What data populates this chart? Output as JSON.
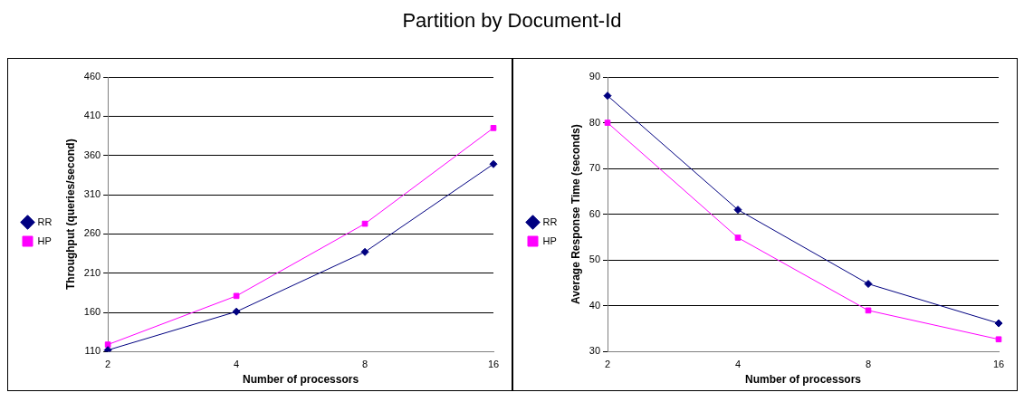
{
  "chart_data": [
    {
      "type": "line",
      "title": "Partition by Document-Id",
      "xlabel": "Number of processors",
      "ylabel": "Throughput (queries/second)",
      "categories": [
        "2",
        "4",
        "8",
        "16"
      ],
      "series": [
        {
          "name": "RR",
          "color": "#000080",
          "marker": "diamond",
          "values": [
            112,
            161,
            237,
            349
          ]
        },
        {
          "name": "HP",
          "color": "#ff00ff",
          "marker": "square",
          "values": [
            119,
            181,
            273,
            395
          ]
        }
      ],
      "ylim": [
        110,
        460
      ],
      "yticks": [
        110,
        160,
        210,
        260,
        310,
        360,
        410,
        460
      ],
      "grid": "y",
      "legend": "left",
      "line_style": "solid"
    },
    {
      "type": "line",
      "xlabel": "Number of processors",
      "ylabel": "Average Response Time (seconds)",
      "categories": [
        "2",
        "4",
        "8",
        "16"
      ],
      "series": [
        {
          "name": "RR",
          "color": "#000080",
          "marker": "diamond",
          "values": [
            85.9,
            61,
            44.8,
            36.2
          ]
        },
        {
          "name": "HP",
          "color": "#ff00ff",
          "marker": "square",
          "values": [
            80,
            54.9,
            39,
            32.7
          ]
        }
      ],
      "ylim": [
        30,
        90
      ],
      "yticks": [
        30,
        40,
        50,
        60,
        70,
        80,
        90
      ],
      "grid": "y",
      "legend": "left",
      "line_style": "solid"
    }
  ]
}
